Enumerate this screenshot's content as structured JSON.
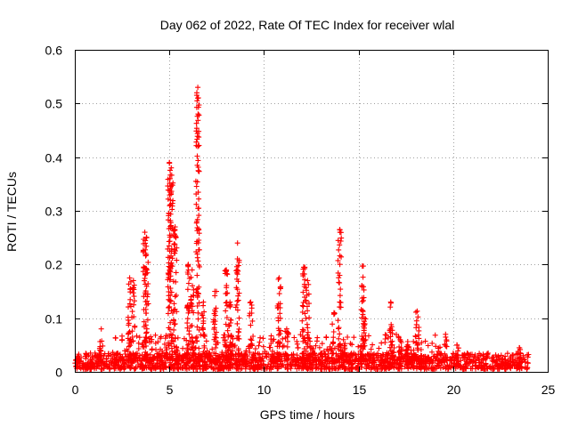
{
  "chart_data": {
    "type": "scatter",
    "title": "Day 062 of 2022, Rate Of TEC Index for receiver wlal",
    "xlabel": "GPS time / hours",
    "ylabel": "ROTI / TECUs",
    "xlim": [
      0,
      25
    ],
    "ylim": [
      0,
      0.6
    ],
    "xticks": [
      0,
      5,
      10,
      15,
      20,
      25
    ],
    "yticks": [
      0,
      0.1,
      0.2,
      0.3,
      0.4,
      0.5,
      0.6
    ],
    "xtick_labels": [
      "0",
      "5",
      "10",
      "15",
      "20",
      "25"
    ],
    "ytick_labels": [
      "0",
      "0.1",
      "0.2",
      "0.3",
      "0.4",
      "0.5",
      "0.6"
    ],
    "grid": true,
    "marker": "+",
    "marker_color": "#ff0000",
    "baseline": {
      "x_range": [
        0,
        24
      ],
      "y_range": [
        0.005,
        0.035
      ]
    },
    "spikes": [
      {
        "x": 1.4,
        "ymax": 0.08
      },
      {
        "x": 2.9,
        "ymax": 0.175
      },
      {
        "x": 3.1,
        "ymax": 0.17
      },
      {
        "x": 3.7,
        "ymax": 0.26
      },
      {
        "x": 3.8,
        "ymax": 0.25
      },
      {
        "x": 5.0,
        "ymax": 0.39
      },
      {
        "x": 5.1,
        "ymax": 0.38
      },
      {
        "x": 5.3,
        "ymax": 0.27
      },
      {
        "x": 6.0,
        "ymax": 0.2
      },
      {
        "x": 6.2,
        "ymax": 0.19
      },
      {
        "x": 6.5,
        "ymax": 0.53
      },
      {
        "x": 6.8,
        "ymax": 0.13
      },
      {
        "x": 7.4,
        "ymax": 0.15
      },
      {
        "x": 8.0,
        "ymax": 0.19
      },
      {
        "x": 8.2,
        "ymax": 0.13
      },
      {
        "x": 8.6,
        "ymax": 0.24
      },
      {
        "x": 9.3,
        "ymax": 0.13
      },
      {
        "x": 10.8,
        "ymax": 0.175
      },
      {
        "x": 11.2,
        "ymax": 0.08
      },
      {
        "x": 12.1,
        "ymax": 0.195
      },
      {
        "x": 12.3,
        "ymax": 0.17
      },
      {
        "x": 13.7,
        "ymax": 0.11
      },
      {
        "x": 14.0,
        "ymax": 0.265
      },
      {
        "x": 14.2,
        "ymax": 0.06
      },
      {
        "x": 15.2,
        "ymax": 0.197
      },
      {
        "x": 15.3,
        "ymax": 0.1
      },
      {
        "x": 16.7,
        "ymax": 0.13
      },
      {
        "x": 17.2,
        "ymax": 0.06
      },
      {
        "x": 17.6,
        "ymax": 0.05
      },
      {
        "x": 18.1,
        "ymax": 0.113
      },
      {
        "x": 19.6,
        "ymax": 0.07
      },
      {
        "x": 20.2,
        "ymax": 0.05
      },
      {
        "x": 23.5,
        "ymax": 0.045
      }
    ],
    "isolated_points": [
      {
        "x": 6.4,
        "y": 0.355
      },
      {
        "x": 6.45,
        "y": 0.28
      },
      {
        "x": 6.5,
        "y": 0.42
      },
      {
        "x": 6.55,
        "y": 0.448
      },
      {
        "x": 6.5,
        "y": 0.51
      },
      {
        "x": 15.25,
        "y": 0.197
      },
      {
        "x": 15.3,
        "y": 0.1
      }
    ]
  }
}
